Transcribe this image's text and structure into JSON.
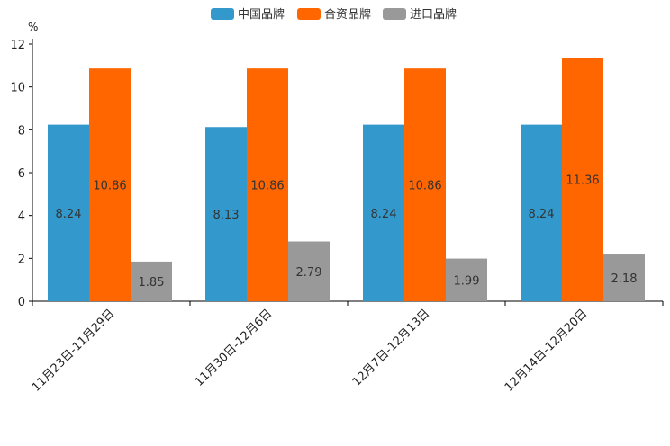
{
  "chart_data": {
    "type": "bar",
    "title": "",
    "xlabel": "",
    "ylabel": "%",
    "ylim": [
      0,
      12
    ],
    "yticks": [
      0,
      2,
      4,
      6,
      8,
      10,
      12
    ],
    "grid": false,
    "legend_position": "top-center",
    "categories": [
      "11月23日-11月29日",
      "11月30日-12月6日",
      "12月7日-12月13日",
      "12月14日-12月20日"
    ],
    "series": [
      {
        "name": "中国品牌",
        "color": "#3399CC",
        "values": [
          8.24,
          8.13,
          8.24,
          8.24
        ]
      },
      {
        "name": "合资品牌",
        "color": "#FF6600",
        "values": [
          10.86,
          10.86,
          10.86,
          11.36
        ]
      },
      {
        "name": "进口品牌",
        "color": "#999999",
        "values": [
          1.85,
          2.79,
          1.99,
          2.18
        ]
      }
    ]
  }
}
